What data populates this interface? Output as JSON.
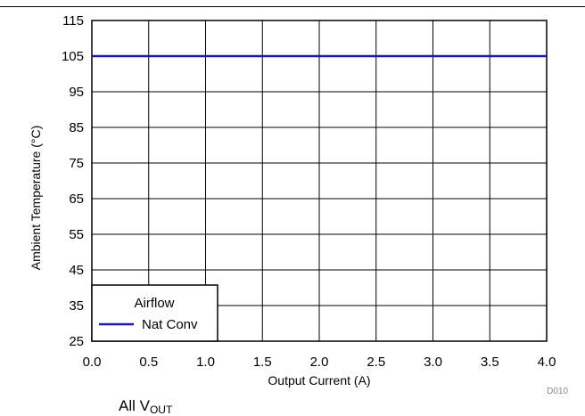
{
  "chart_data": {
    "type": "line",
    "title": "",
    "xlabel": "Output Current (A)",
    "ylabel": "Ambient Temperature (°C)",
    "xlim": [
      0.0,
      4.0
    ],
    "ylim": [
      25,
      115
    ],
    "x_ticks": [
      "0.0",
      "0.5",
      "1.0",
      "1.5",
      "2.0",
      "2.5",
      "3.0",
      "3.5",
      "4.0"
    ],
    "y_ticks": [
      "25",
      "35",
      "45",
      "55",
      "65",
      "75",
      "85",
      "95",
      "105",
      "115"
    ],
    "grid": true,
    "legend": {
      "title": "Airflow",
      "placement": "bottom-left"
    },
    "series": [
      {
        "name": "Nat Conv",
        "color": "#1a1aa6",
        "x": [
          0.0,
          4.0
        ],
        "y": [
          105,
          105
        ]
      }
    ],
    "figure_id": "D010"
  },
  "caption": {
    "main": "All V",
    "sub": "OUT"
  },
  "colors": {
    "series": "#1a1aa6",
    "grid": "#000000",
    "figure_id": "#8a8a8a"
  }
}
